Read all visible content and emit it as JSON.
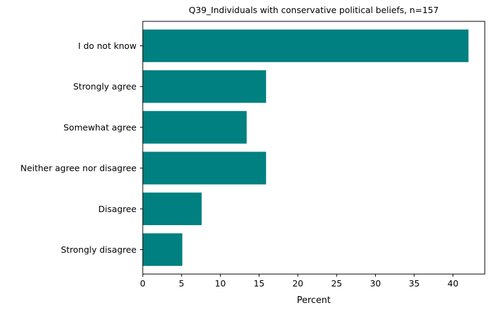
{
  "chart_data": {
    "type": "bar",
    "orientation": "horizontal",
    "title": "Q39_Individuals with conservative political beliefs, n=157",
    "xlabel": "Percent",
    "ylabel": "",
    "categories": [
      "Strongly disagree",
      "Disagree",
      "Neither agree nor disagree",
      "Somewhat agree",
      "Strongly agree",
      "I do not know"
    ],
    "values": [
      5.1,
      7.6,
      15.9,
      13.4,
      15.9,
      42.0
    ],
    "xlim": [
      0,
      44.1
    ],
    "xticks": [
      0,
      5,
      10,
      15,
      20,
      25,
      30,
      35,
      40
    ],
    "grid": false,
    "bar_color": "#008080"
  }
}
